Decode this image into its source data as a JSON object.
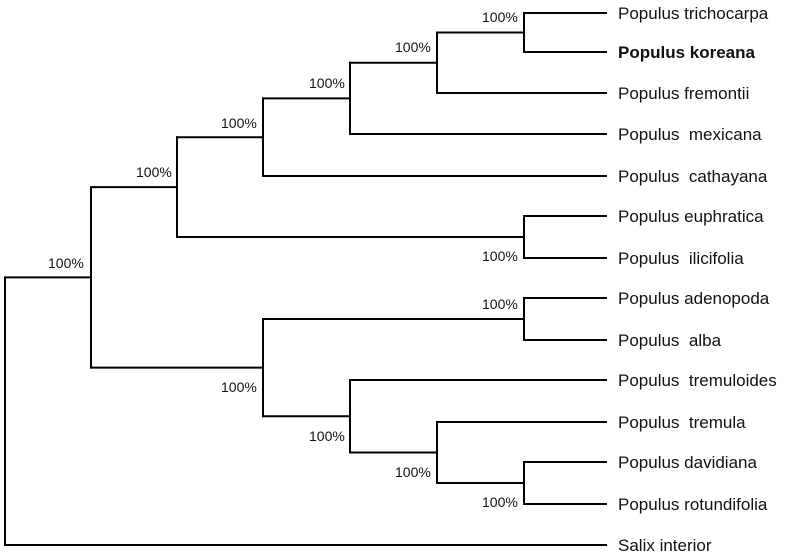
{
  "tree": {
    "taxa": [
      {
        "id": "trichocarpa",
        "label": "Populus trichocarpa",
        "bold": false
      },
      {
        "id": "koreana",
        "label": "Populus koreana",
        "bold": true
      },
      {
        "id": "fremontii",
        "label": "Populus fremontii",
        "bold": false
      },
      {
        "id": "mexicana",
        "label": "Populus  mexicana",
        "bold": false
      },
      {
        "id": "cathayana",
        "label": "Populus  cathayana",
        "bold": false
      },
      {
        "id": "euphratica",
        "label": "Populus euphratica",
        "bold": false
      },
      {
        "id": "ilicifolia",
        "label": "Populus  ilicifolia",
        "bold": false
      },
      {
        "id": "adenopoda",
        "label": "Populus adenopoda",
        "bold": false
      },
      {
        "id": "alba",
        "label": "Populus  alba",
        "bold": false
      },
      {
        "id": "tremuloides",
        "label": "Populus  tremuloides",
        "bold": false
      },
      {
        "id": "tremula",
        "label": "Populus  tremula",
        "bold": false
      },
      {
        "id": "davidiana",
        "label": "Populus davidiana",
        "bold": false
      },
      {
        "id": "rotundifolia",
        "label": "Populus rotundifolia",
        "bold": false
      },
      {
        "id": "salix",
        "label": "Salix interior",
        "bold": false
      }
    ],
    "support_values": {
      "n_tri_kor": "100%",
      "n_trikor_fre": "100%",
      "n_mex": "100%",
      "n_cat": "100%",
      "n_eup_ili": "100%",
      "n_upper": "100%",
      "n_root_populus": "100%",
      "n_ade_alb": "100%",
      "n_lower": "100%",
      "n_tremuloides": "100%",
      "n_tremula": "100%",
      "n_dav_rot": "100%"
    }
  }
}
